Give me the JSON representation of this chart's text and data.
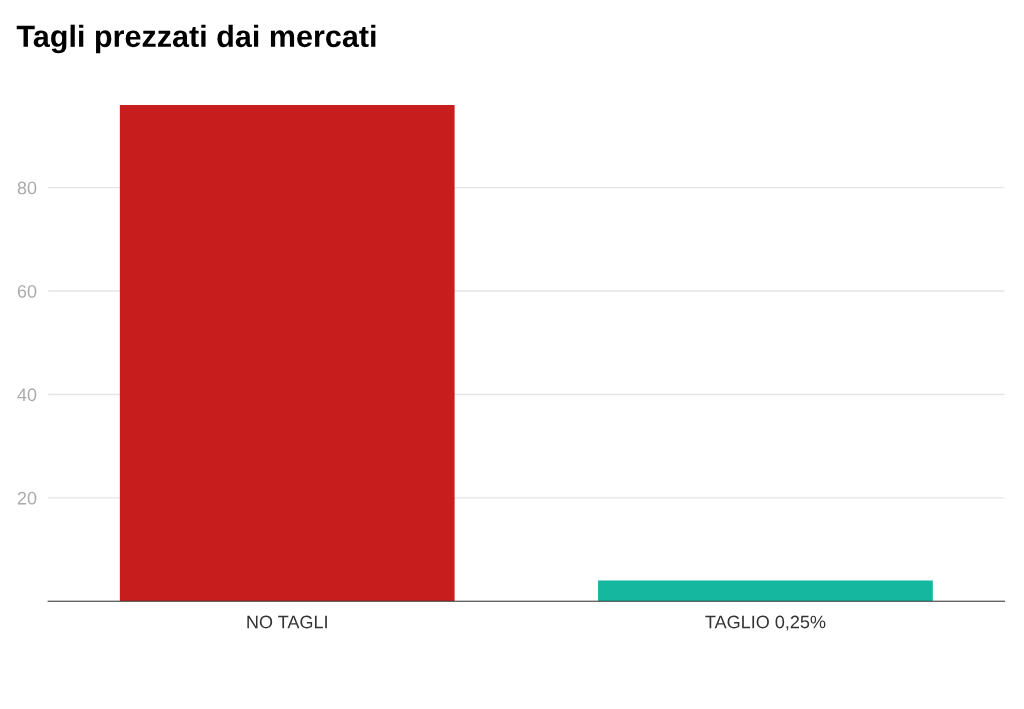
{
  "chart_data": {
    "type": "bar",
    "title": "Tagli prezzati dai mercati",
    "categories": [
      "NO TAGLI",
      "TAGLIO 0,25%"
    ],
    "values": [
      96,
      4
    ],
    "colors": [
      "#c71e1d",
      "#15b79f"
    ],
    "ylim": [
      0,
      96
    ],
    "yticks": [
      {
        "value": 0,
        "label": null
      },
      20,
      40,
      60,
      80
    ],
    "grid": "y"
  }
}
